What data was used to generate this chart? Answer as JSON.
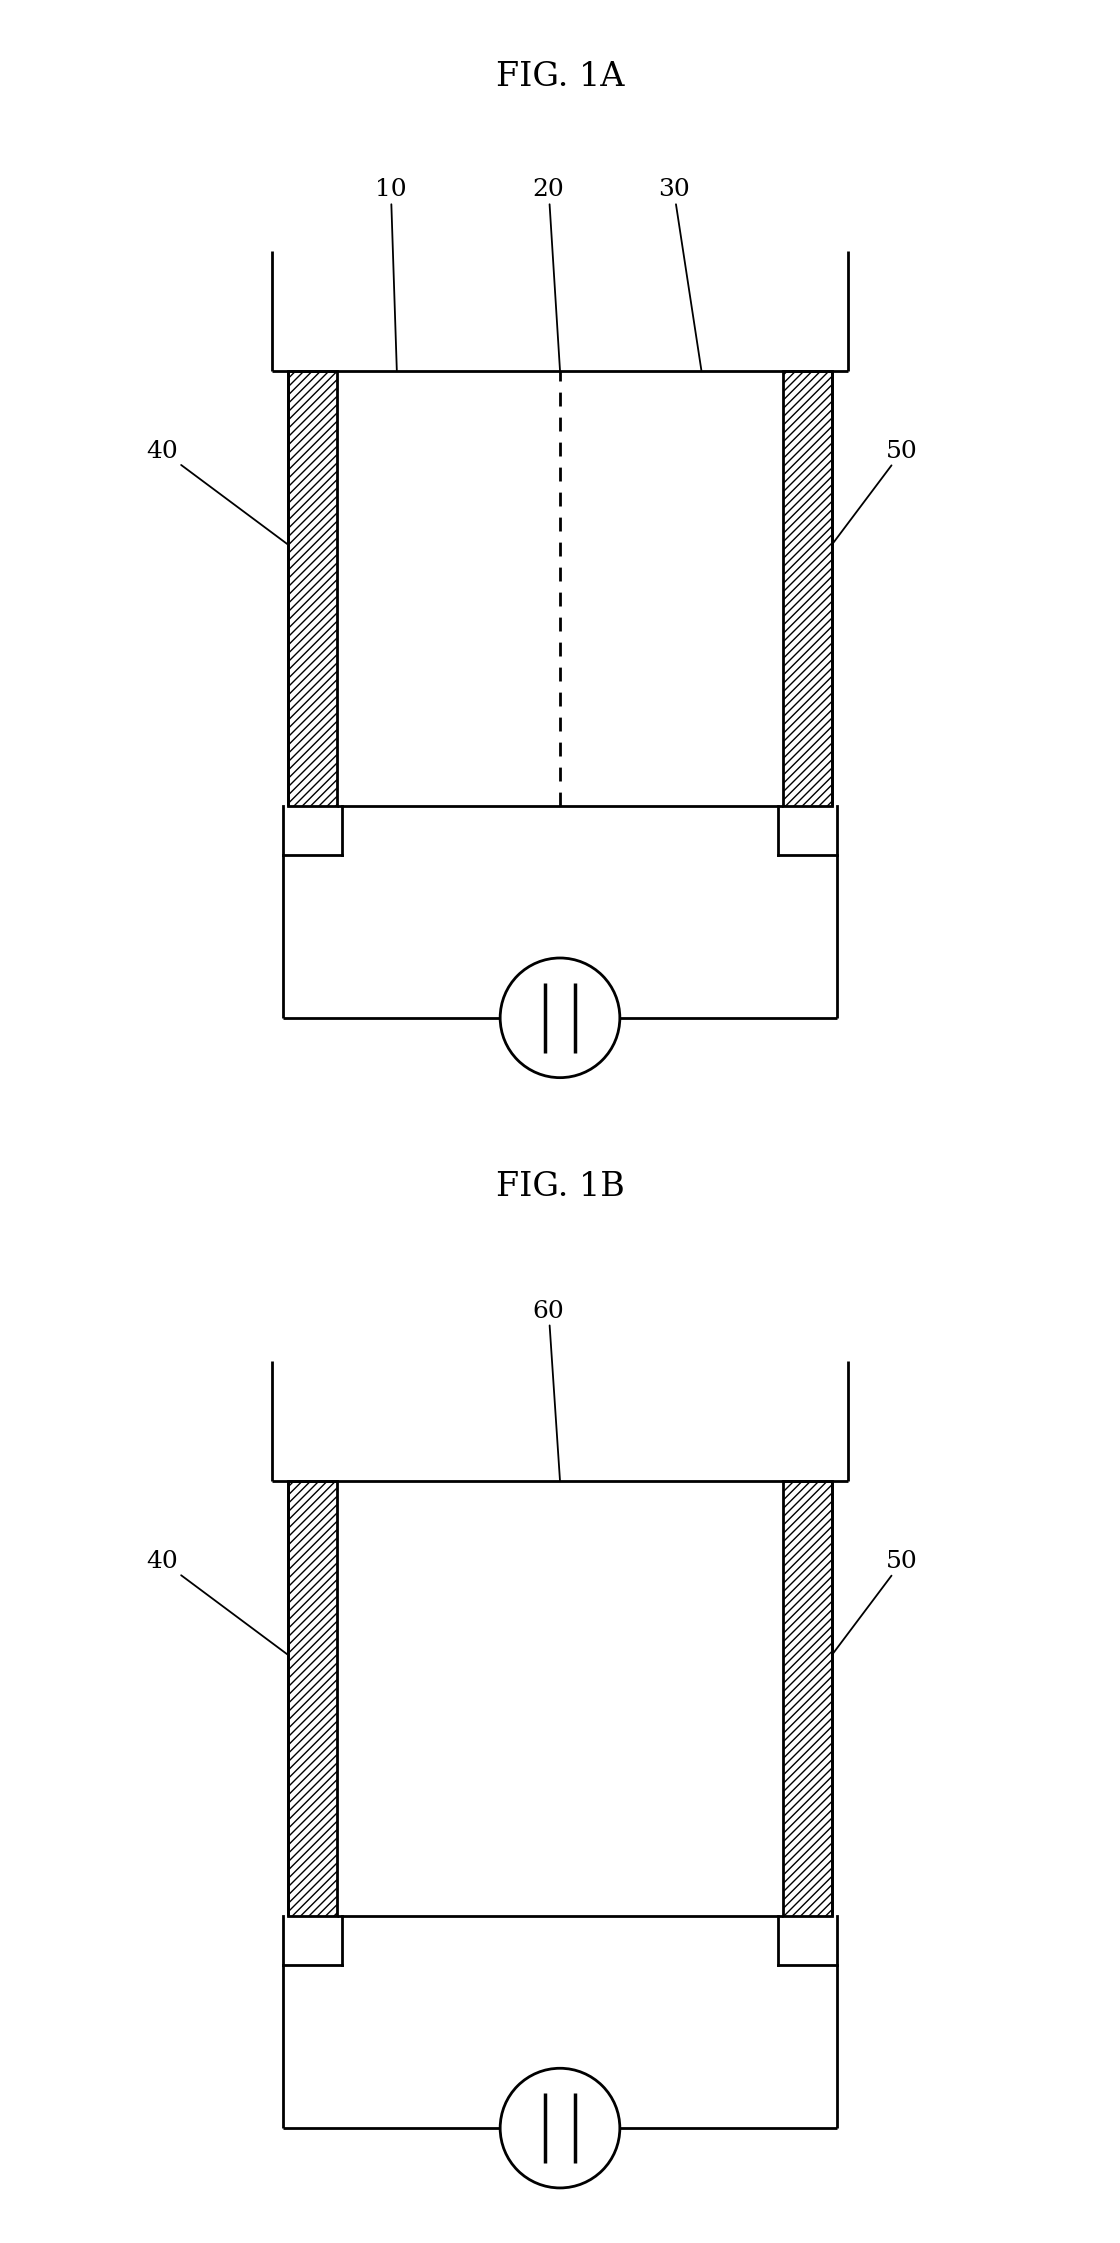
{
  "fig_title_A": "FIG. 1A",
  "fig_title_B": "FIG. 1B",
  "background_color": "#ffffff",
  "line_color": "#000000",
  "label_fontsize": 18,
  "title_fontsize": 24,
  "lw": 2.0
}
